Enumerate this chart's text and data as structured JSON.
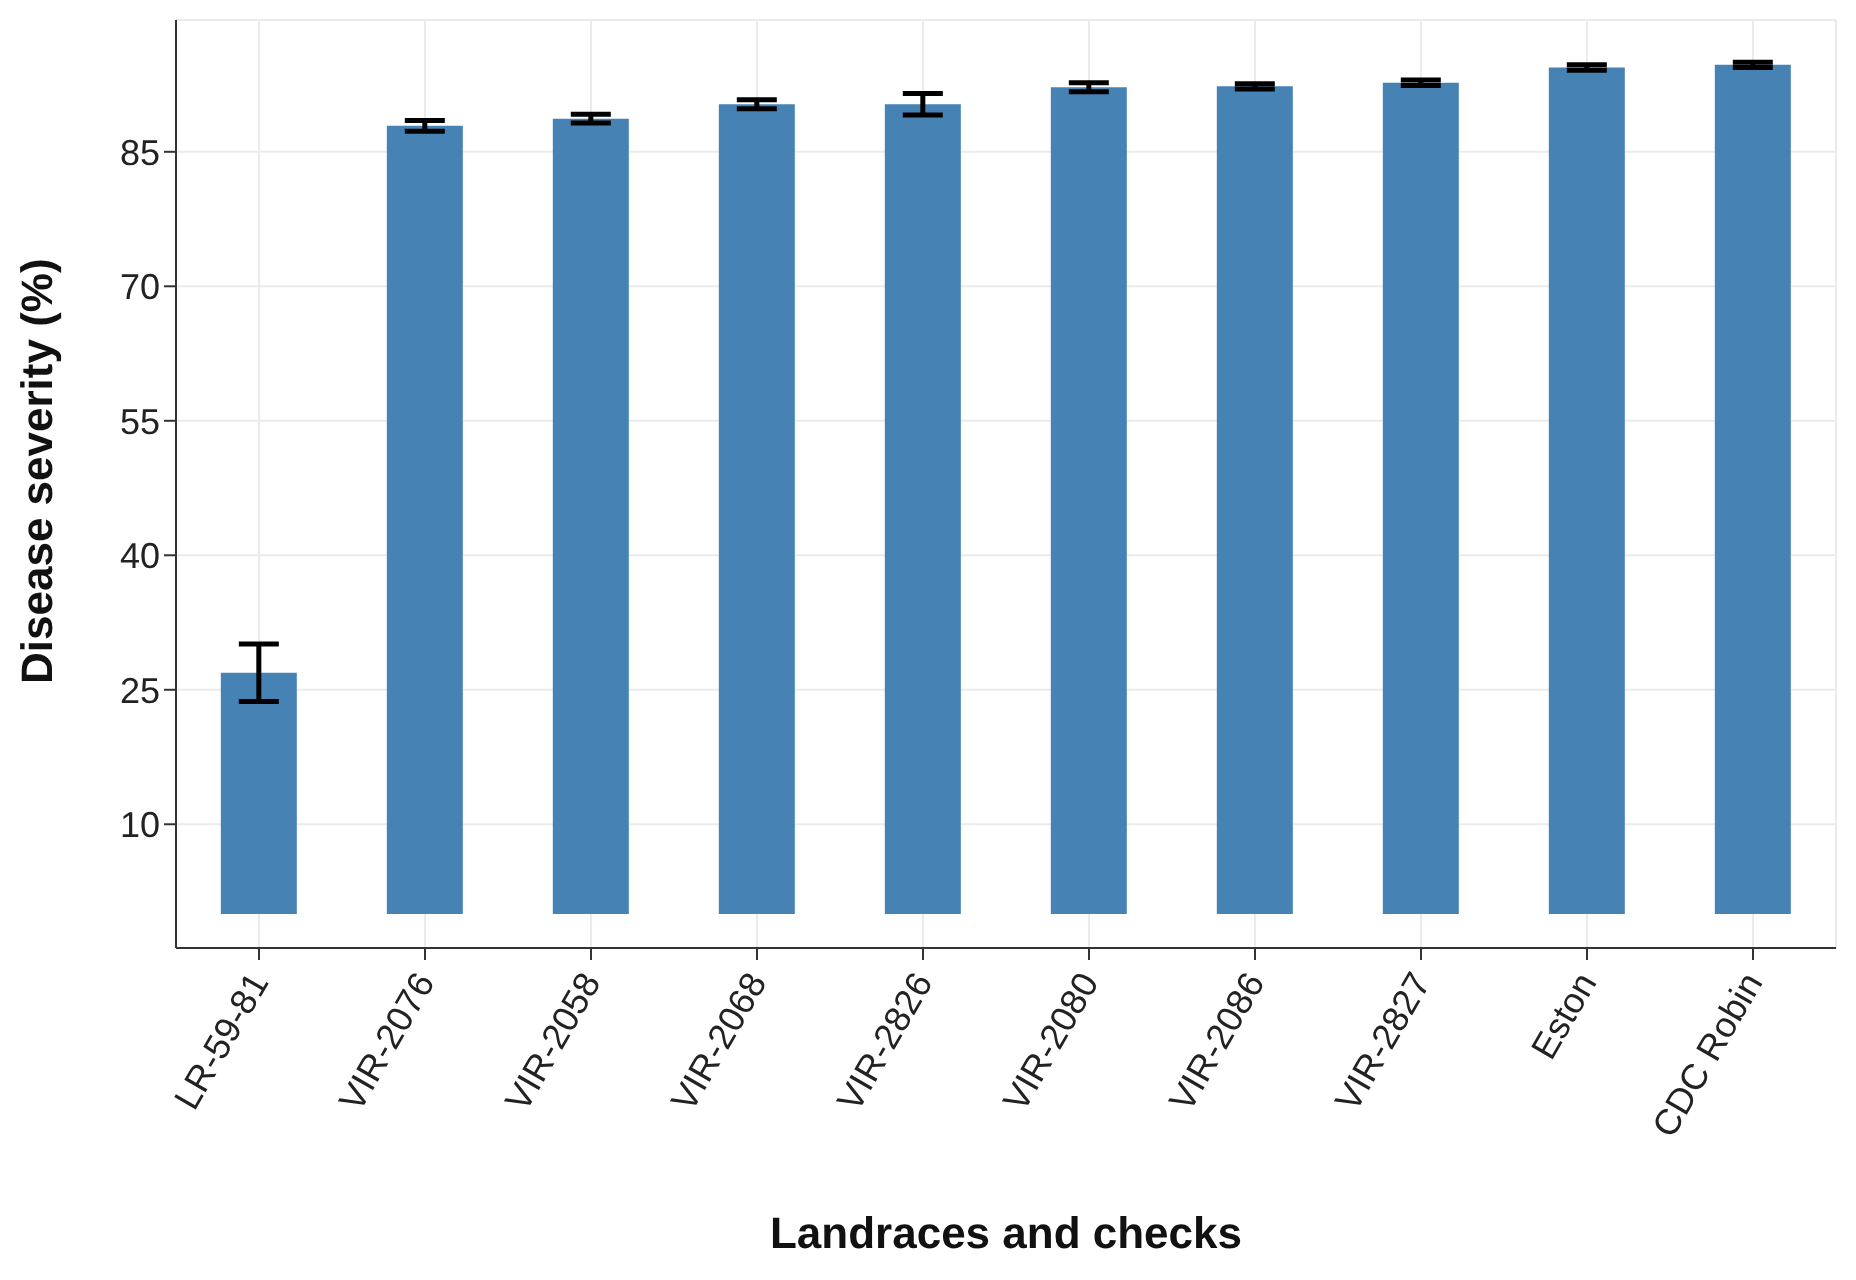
{
  "chart_data": {
    "type": "bar",
    "xlabel": "Landraces and checks",
    "ylabel": "Disease severity (%)",
    "categories": [
      "LR-59-81",
      "VIR-2076",
      "VIR-2058",
      "VIR-2068",
      "VIR-2826",
      "VIR-2080",
      "VIR-2086",
      "VIR-2827",
      "Eston",
      "CDC Robin"
    ],
    "values": [
      26.9,
      87.9,
      88.7,
      90.3,
      90.3,
      92.2,
      92.3,
      92.7,
      94.4,
      94.7
    ],
    "errors": [
      3.2,
      0.6,
      0.5,
      0.5,
      1.2,
      0.5,
      0.3,
      0.3,
      0.3,
      0.3
    ],
    "color": "#4682b4",
    "ylim": [
      -3.8,
      99.7
    ],
    "yticks": [
      10,
      25,
      40,
      55,
      70,
      85
    ],
    "grid": true
  }
}
